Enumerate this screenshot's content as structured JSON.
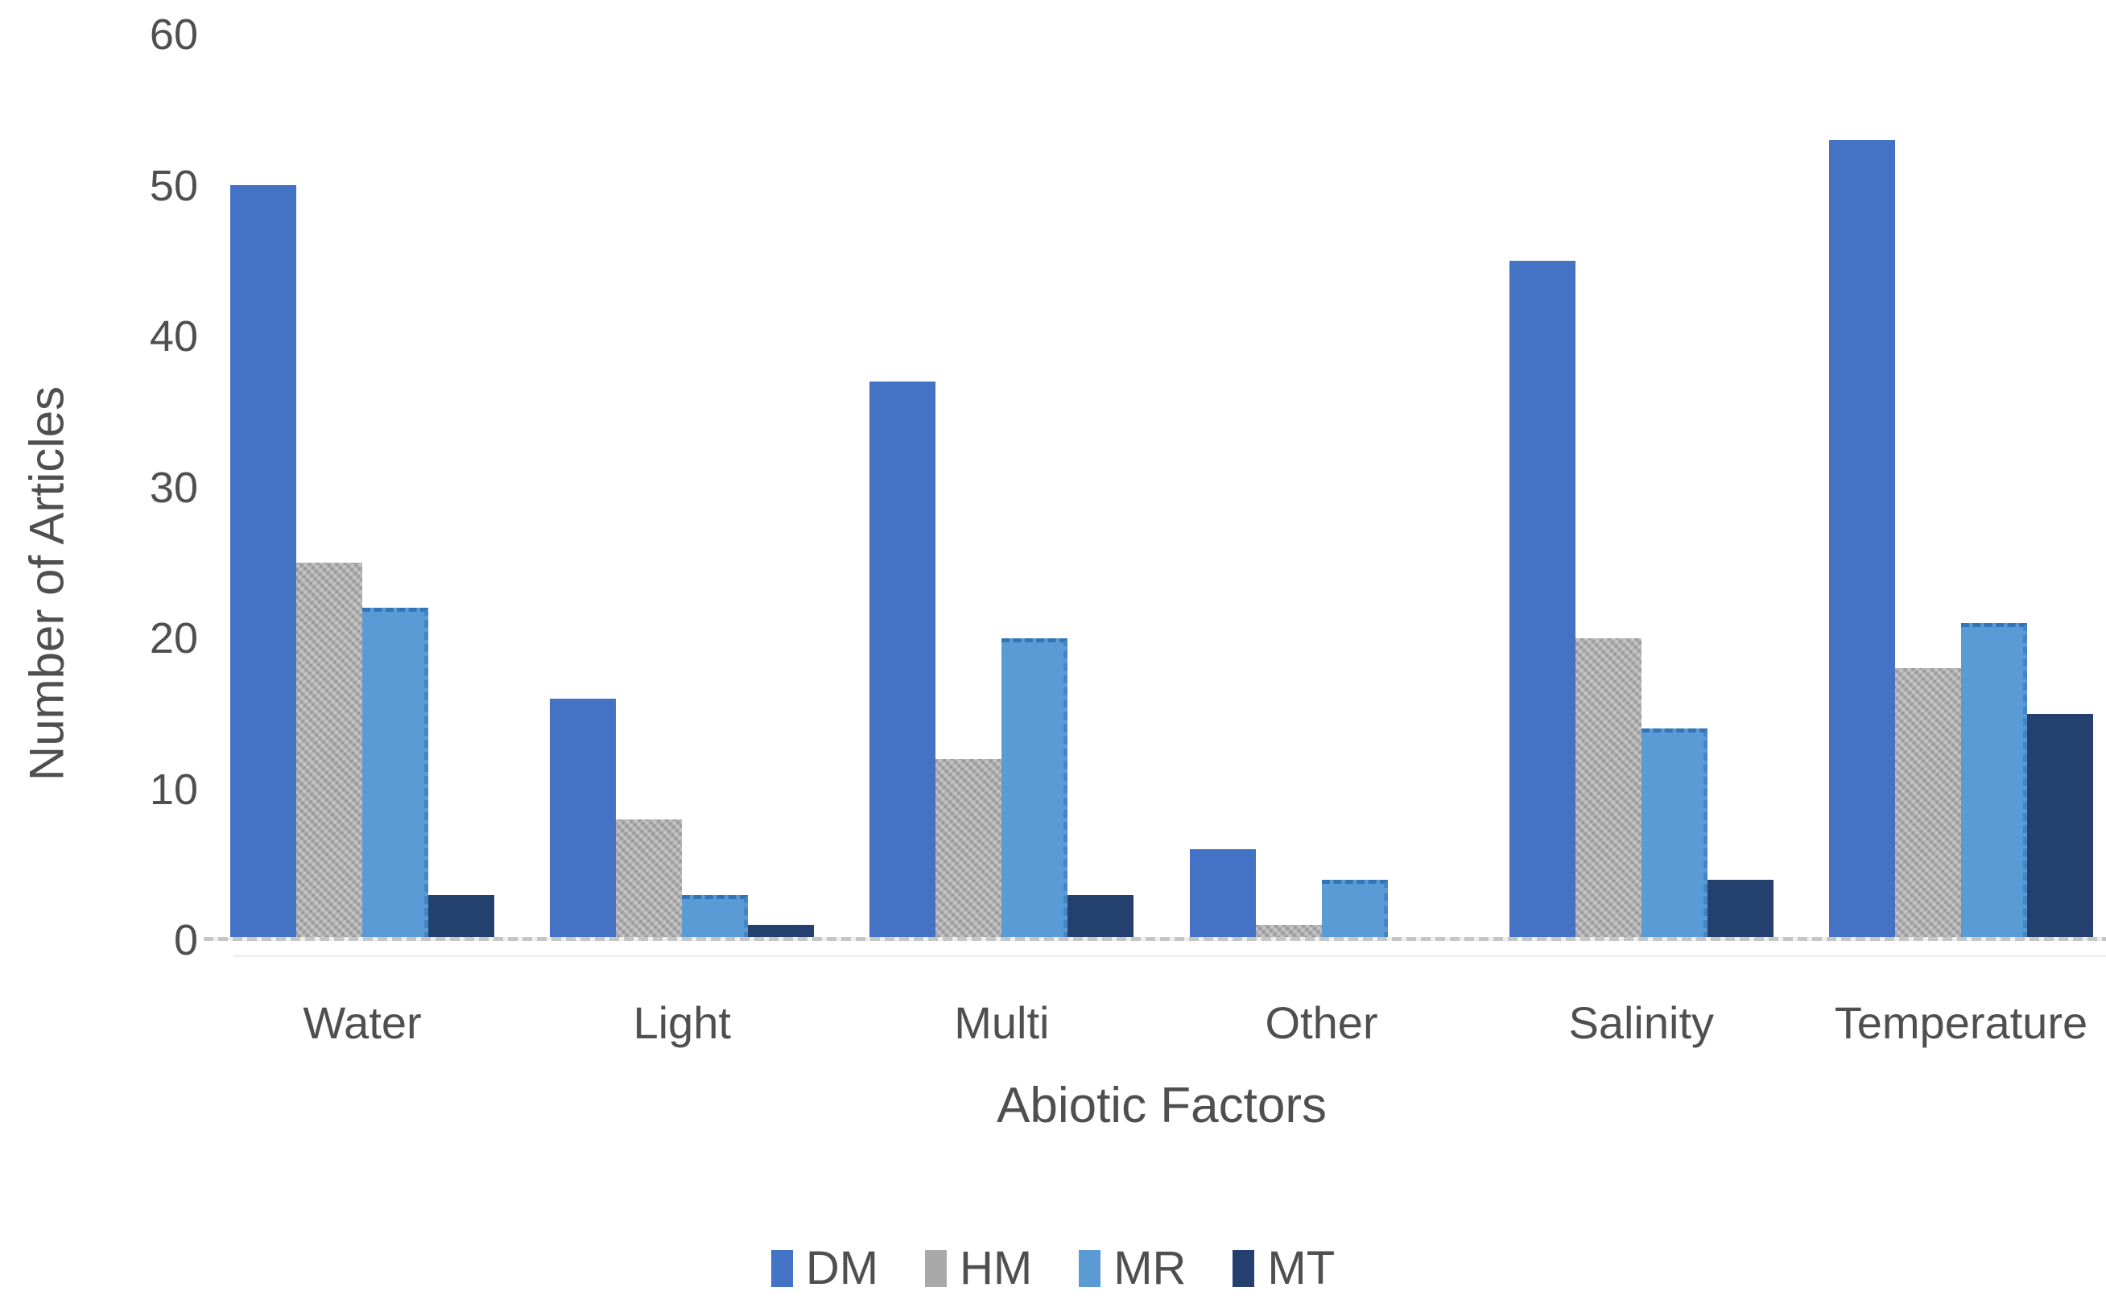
{
  "chart_data": {
    "type": "bar",
    "title": "",
    "xlabel": "Abiotic Factors",
    "ylabel": "Number of Articles",
    "categories": [
      "Water",
      "Light",
      "Multi",
      "Other",
      "Salinity",
      "Temperature"
    ],
    "series": [
      {
        "name": "DM",
        "color": "#4472C4",
        "pattern": "solid",
        "values": [
          50,
          16,
          37,
          6,
          45,
          53
        ]
      },
      {
        "name": "HM",
        "color": "#A9A9A9",
        "pattern": "textured",
        "values": [
          25,
          8,
          12,
          1,
          20,
          18
        ]
      },
      {
        "name": "MR",
        "color": "#5B9BD5",
        "pattern": "dashed-border",
        "values": [
          22,
          3,
          20,
          4,
          14,
          21
        ]
      },
      {
        "name": "MT",
        "color": "#24406E",
        "pattern": "solid",
        "values": [
          3,
          1,
          3,
          0,
          4,
          15
        ]
      }
    ],
    "ylim": [
      0,
      60
    ],
    "yticks": [
      0,
      10,
      20,
      30,
      40,
      50,
      60
    ],
    "grid": false,
    "legend_position": "bottom",
    "text_color": "#4f4f4f",
    "axis_line_color": "#C6C6C6"
  }
}
